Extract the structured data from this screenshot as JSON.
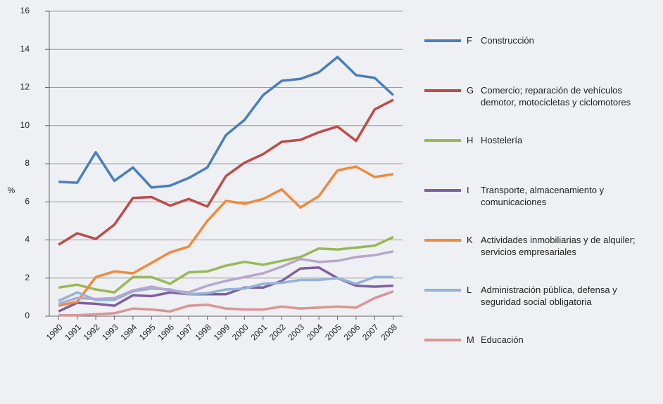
{
  "chart_data": {
    "type": "line",
    "y_label": "%",
    "categories": [
      "1990",
      "1991",
      "1992",
      "1993",
      "1994",
      "1995",
      "1996",
      "1997",
      "1998",
      "1999",
      "2000",
      "2001",
      "2002",
      "2003",
      "2004",
      "2005",
      "2006",
      "2007",
      "2008"
    ],
    "ylim": [
      0,
      16
    ],
    "yticks": [
      0,
      2,
      4,
      6,
      8,
      10,
      12,
      14,
      16
    ],
    "grid": true,
    "legend": "right",
    "series": [
      {
        "code": "F",
        "name": "Construcción",
        "color": "#4a7ebb",
        "values": [
          7.05,
          7.0,
          8.6,
          7.1,
          7.8,
          6.75,
          6.85,
          7.25,
          7.8,
          9.5,
          10.3,
          11.6,
          12.35,
          12.45,
          12.8,
          13.6,
          12.65,
          12.5,
          11.6
        ]
      },
      {
        "code": "G",
        "name": "Comercio; reparación de vehículos demotor, motocicletas y ciclomotores",
        "color": "#be4b48",
        "values": [
          3.75,
          4.35,
          4.05,
          4.8,
          6.2,
          6.25,
          5.8,
          6.15,
          5.75,
          7.35,
          8.05,
          8.5,
          9.15,
          9.25,
          9.65,
          9.95,
          9.2,
          10.85,
          11.35
        ]
      },
      {
        "code": "H",
        "name": "Hostelería",
        "color": "#98b954",
        "values": [
          1.5,
          1.65,
          1.4,
          1.25,
          2.05,
          2.05,
          1.7,
          2.3,
          2.35,
          2.65,
          2.85,
          2.7,
          2.9,
          3.1,
          3.55,
          3.5,
          3.6,
          3.7,
          4.15
        ]
      },
      {
        "code": "I",
        "name": "Transporte, almacenamiento y comunicaciones",
        "color": "#7d60a0",
        "values": [
          0.25,
          0.7,
          0.65,
          0.55,
          1.1,
          1.05,
          1.25,
          1.15,
          1.15,
          1.15,
          1.5,
          1.5,
          1.85,
          2.5,
          2.55,
          2.0,
          1.6,
          1.55,
          1.6
        ]
      },
      {
        "code": "K",
        "name": "Actividades inmobiliarias y de alquiler; servicios empresariales",
        "color": "#f08a3c",
        "values": [
          0.55,
          0.75,
          2.05,
          2.35,
          2.25,
          2.8,
          3.35,
          3.65,
          5.0,
          6.05,
          5.9,
          6.15,
          6.65,
          5.7,
          6.3,
          7.65,
          7.85,
          7.3,
          7.45
        ]
      },
      {
        "code": "L",
        "name": "Administración pública, defensa y seguridad social obligatoria",
        "color": "#93b3d7",
        "values": [
          0.8,
          1.25,
          0.85,
          0.85,
          1.3,
          1.45,
          1.4,
          1.15,
          1.2,
          1.4,
          1.45,
          1.7,
          1.75,
          1.9,
          1.9,
          2.0,
          1.7,
          2.05,
          2.05
        ]
      },
      {
        "color": "#b7a6cc",
        "values": [
          0.65,
          0.95,
          0.9,
          0.95,
          1.35,
          1.55,
          1.35,
          1.25,
          1.6,
          1.85,
          2.05,
          2.25,
          2.6,
          3.0,
          2.85,
          2.9,
          3.1,
          3.2,
          3.4
        ]
      },
      {
        "code": "M",
        "name": "Educación",
        "color": "#d99694",
        "values": [
          0.05,
          0.05,
          0.1,
          0.15,
          0.4,
          0.35,
          0.25,
          0.55,
          0.6,
          0.4,
          0.35,
          0.35,
          0.5,
          0.4,
          0.45,
          0.5,
          0.45,
          0.95,
          1.3
        ]
      }
    ]
  }
}
